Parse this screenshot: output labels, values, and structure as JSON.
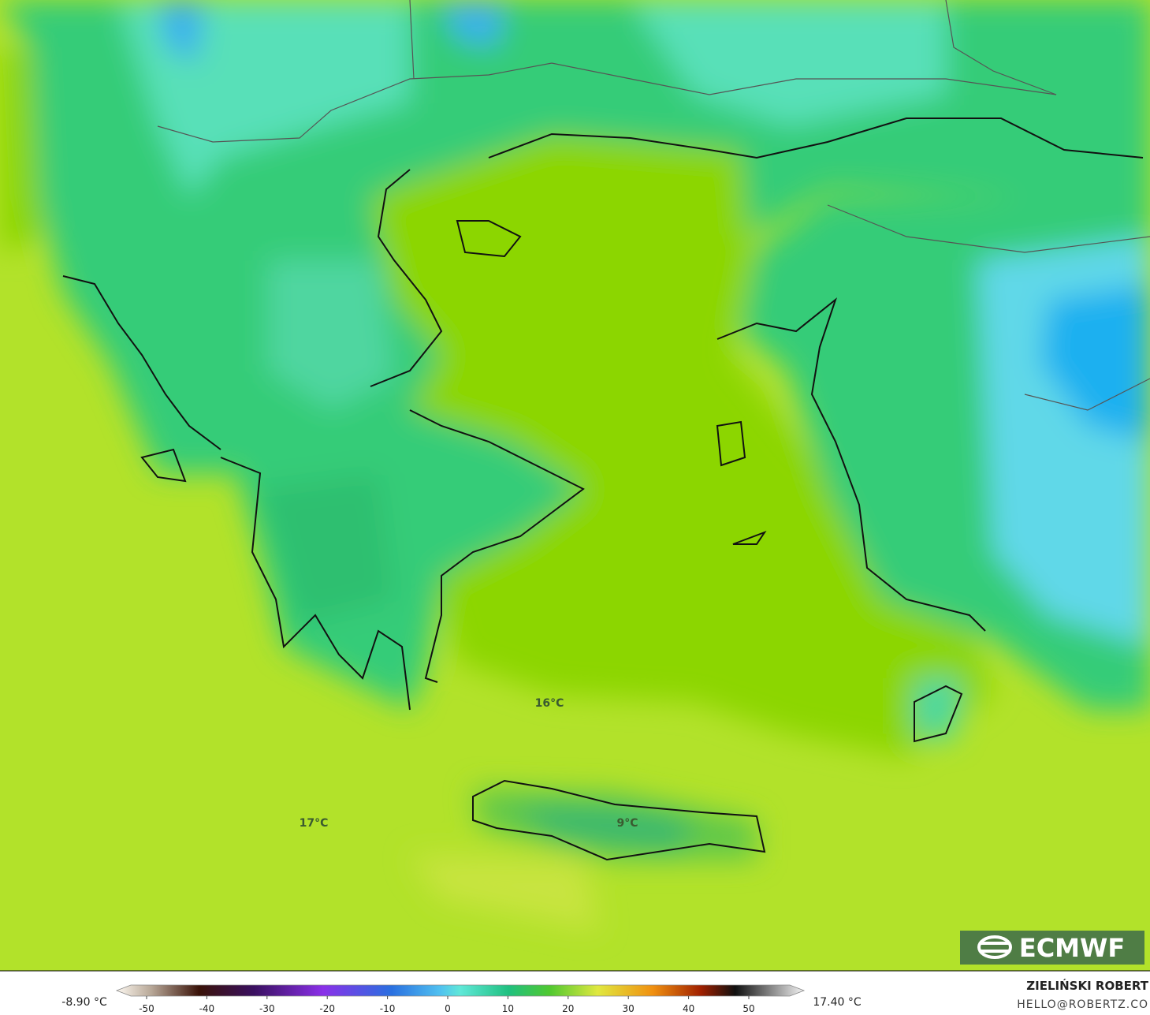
{
  "map": {
    "labels": [
      "16°C",
      "17°C",
      "9°C"
    ]
  },
  "colorbar": {
    "min_label": "-8.90 °C",
    "max_label": "17.40 °C",
    "ticks": [
      -50,
      -40,
      -30,
      -20,
      -10,
      0,
      10,
      20,
      30,
      40,
      50
    ]
  },
  "logo": "ECMWF",
  "credits": {
    "author": "ZIELIŃSKI ROBERT",
    "contact": "HELLO@ROBERTZ.CO"
  }
}
